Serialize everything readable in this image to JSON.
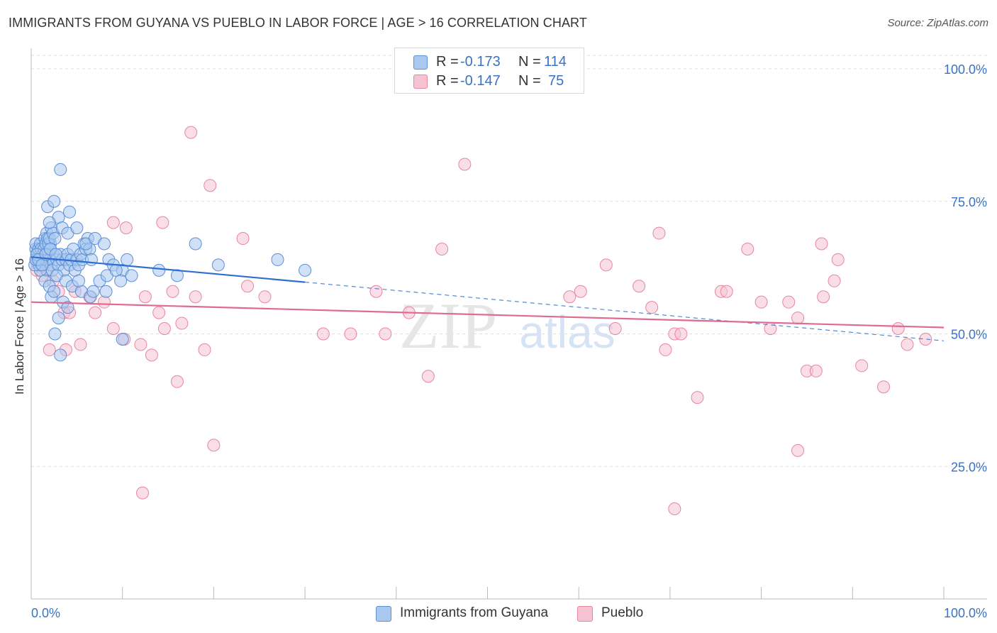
{
  "title": "IMMIGRANTS FROM GUYANA VS PUEBLO IN LABOR FORCE | AGE > 16 CORRELATION CHART",
  "source": "Source: ZipAtlas.com",
  "colors": {
    "blue_fill": "#a9c8f0",
    "blue_stroke": "#5b8fd6",
    "blue_line": "#2f6fd0",
    "pink_fill": "#f6c3d3",
    "pink_stroke": "#e8859f",
    "pink_line": "#e06b92",
    "axis_label": "#3a72c4",
    "grid": "#dddddd"
  },
  "legend_top": {
    "rows": [
      {
        "r_label": "R = ",
        "r_value": "-0.173",
        "n_label": "N = ",
        "n_value": "114"
      },
      {
        "r_label": "R = ",
        "r_value": "-0.147",
        "n_label": "N = ",
        "n_value": "75"
      }
    ]
  },
  "legend_bottom": {
    "items": [
      "Immigrants from Guyana",
      "Pueblo"
    ]
  },
  "watermark": {
    "zip": "ZIP",
    "atlas": "atlas"
  },
  "chart_data": {
    "type": "scatter",
    "title": "IMMIGRANTS FROM GUYANA VS PUEBLO IN LABOR FORCE | AGE > 16 CORRELATION CHART",
    "xlabel": "",
    "ylabel": "In Labor Force | Age > 16",
    "xlim": [
      0,
      100
    ],
    "ylim": [
      0,
      104
    ],
    "x_tick_labels": [
      "0.0%",
      "100.0%"
    ],
    "y_ticks": [
      25,
      50,
      75,
      100
    ],
    "y_tick_labels": [
      "25.0%",
      "50.0%",
      "75.0%",
      "100.0%"
    ],
    "grid": true,
    "series": [
      {
        "name": "Immigrants from Guyana",
        "R": -0.173,
        "N": 114,
        "trend": {
          "x_start": 0,
          "y_start": 64.5,
          "x_solid_end": 30,
          "x_end": 100,
          "y_end": 48.7
        },
        "points": [
          [
            0.5,
            66
          ],
          [
            0.6,
            65
          ],
          [
            0.7,
            64
          ],
          [
            0.8,
            63
          ],
          [
            0.9,
            66
          ],
          [
            1.0,
            65
          ],
          [
            1.1,
            64
          ],
          [
            1.2,
            67
          ],
          [
            1.3,
            66
          ],
          [
            1.4,
            63
          ],
          [
            1.5,
            65
          ],
          [
            1.6,
            64
          ],
          [
            1.7,
            62
          ],
          [
            1.8,
            66
          ],
          [
            1.9,
            65
          ],
          [
            2.0,
            64
          ],
          [
            2.1,
            67
          ],
          [
            2.2,
            63
          ],
          [
            2.3,
            62
          ],
          [
            2.4,
            65
          ],
          [
            0.5,
            67
          ],
          [
            0.6,
            64
          ],
          [
            0.7,
            65
          ],
          [
            0.8,
            66
          ],
          [
            0.9,
            63
          ],
          [
            1.0,
            67
          ],
          [
            1.1,
            66
          ],
          [
            1.2,
            64
          ],
          [
            1.3,
            65
          ],
          [
            1.4,
            66
          ],
          [
            1.5,
            68
          ],
          [
            1.6,
            67
          ],
          [
            1.7,
            69
          ],
          [
            1.8,
            68
          ],
          [
            1.9,
            67
          ],
          [
            2.0,
            68
          ],
          [
            2.1,
            66
          ],
          [
            2.2,
            70
          ],
          [
            2.4,
            69
          ],
          [
            2.6,
            68
          ],
          [
            2.8,
            64
          ],
          [
            3.0,
            63
          ],
          [
            3.2,
            65
          ],
          [
            3.4,
            64
          ],
          [
            3.6,
            62
          ],
          [
            3.8,
            64
          ],
          [
            4.0,
            65
          ],
          [
            4.2,
            63
          ],
          [
            4.4,
            64
          ],
          [
            4.6,
            66
          ],
          [
            4.8,
            62
          ],
          [
            5.0,
            64
          ],
          [
            5.2,
            63
          ],
          [
            5.4,
            65
          ],
          [
            5.6,
            64
          ],
          [
            5.8,
            67
          ],
          [
            6.0,
            66
          ],
          [
            6.2,
            68
          ],
          [
            6.4,
            66
          ],
          [
            6.6,
            64
          ],
          [
            3.0,
            72
          ],
          [
            3.4,
            70
          ],
          [
            4.0,
            69
          ],
          [
            5.0,
            70
          ],
          [
            6.0,
            67
          ],
          [
            7.0,
            68
          ],
          [
            8.0,
            67
          ],
          [
            8.5,
            64
          ],
          [
            9.0,
            63
          ],
          [
            10.0,
            62
          ],
          [
            2.0,
            71
          ],
          [
            1.8,
            74
          ],
          [
            2.5,
            75
          ],
          [
            4.2,
            73
          ],
          [
            3.2,
            81
          ],
          [
            2.8,
            61
          ],
          [
            3.8,
            60
          ],
          [
            4.5,
            59
          ],
          [
            5.5,
            58
          ],
          [
            6.5,
            57
          ],
          [
            7.5,
            60
          ],
          [
            8.3,
            61
          ],
          [
            9.3,
            62
          ],
          [
            10.5,
            64
          ],
          [
            11.0,
            61
          ],
          [
            9.8,
            60
          ],
          [
            2.2,
            57
          ],
          [
            3.5,
            56
          ],
          [
            4.0,
            55
          ],
          [
            5.2,
            60
          ],
          [
            6.8,
            58
          ],
          [
            8.2,
            58
          ],
          [
            3.0,
            53
          ],
          [
            2.6,
            50
          ],
          [
            3.2,
            46
          ],
          [
            10.0,
            49
          ],
          [
            14.0,
            62
          ],
          [
            16.0,
            61
          ],
          [
            18.0,
            67
          ],
          [
            20.5,
            63
          ],
          [
            27.0,
            64
          ],
          [
            30.0,
            62
          ],
          [
            1.0,
            62
          ],
          [
            1.5,
            60
          ],
          [
            2.0,
            59
          ],
          [
            2.5,
            58
          ],
          [
            0.4,
            63
          ],
          [
            0.5,
            64
          ],
          [
            0.6,
            65
          ],
          [
            0.8,
            64
          ],
          [
            1.2,
            63
          ],
          [
            1.6,
            65
          ],
          [
            2.1,
            66
          ],
          [
            2.7,
            65
          ]
        ]
      },
      {
        "name": "Pueblo",
        "R": -0.147,
        "N": 75,
        "trend": {
          "x_start": 0,
          "y_start": 56,
          "x_end": 100,
          "y_end": 51.2
        },
        "points": [
          [
            0.6,
            62
          ],
          [
            1.2,
            61
          ],
          [
            1.8,
            62
          ],
          [
            2.4,
            60
          ],
          [
            3.0,
            58
          ],
          [
            3.6,
            54
          ],
          [
            4.2,
            54
          ],
          [
            4.8,
            58
          ],
          [
            5.4,
            48
          ],
          [
            6.4,
            57
          ],
          [
            7.0,
            54
          ],
          [
            8.0,
            56
          ],
          [
            2.0,
            47
          ],
          [
            3.8,
            47
          ],
          [
            9.0,
            51
          ],
          [
            10.2,
            49
          ],
          [
            12.0,
            48
          ],
          [
            12.5,
            57
          ],
          [
            13.2,
            46
          ],
          [
            14.0,
            54
          ],
          [
            14.6,
            51
          ],
          [
            15.5,
            58
          ],
          [
            16.5,
            52
          ],
          [
            18.0,
            57
          ],
          [
            19.0,
            47
          ],
          [
            16.0,
            41
          ],
          [
            9.0,
            71
          ],
          [
            10.4,
            70
          ],
          [
            14.4,
            71
          ],
          [
            17.5,
            88
          ],
          [
            19.6,
            78
          ],
          [
            23.2,
            68
          ],
          [
            23.7,
            59
          ],
          [
            25.6,
            57
          ],
          [
            12.2,
            20
          ],
          [
            20.0,
            29
          ],
          [
            32.0,
            50
          ],
          [
            35.0,
            50
          ],
          [
            37.8,
            58
          ],
          [
            38.8,
            50
          ],
          [
            41.4,
            54
          ],
          [
            43.5,
            42
          ],
          [
            45.0,
            66
          ],
          [
            47.5,
            82
          ],
          [
            59.0,
            57
          ],
          [
            60.2,
            58
          ],
          [
            63.0,
            63
          ],
          [
            64.0,
            51
          ],
          [
            66.6,
            59
          ],
          [
            68.0,
            55
          ],
          [
            68.8,
            69
          ],
          [
            69.5,
            47
          ],
          [
            70.5,
            50
          ],
          [
            71.2,
            50
          ],
          [
            73.0,
            38
          ],
          [
            75.6,
            58
          ],
          [
            76.2,
            58
          ],
          [
            78.5,
            66
          ],
          [
            80.0,
            56
          ],
          [
            81.0,
            51
          ],
          [
            83.0,
            56
          ],
          [
            84.0,
            53
          ],
          [
            85.0,
            43
          ],
          [
            86.0,
            43
          ],
          [
            86.6,
            67
          ],
          [
            86.8,
            57
          ],
          [
            88.0,
            60
          ],
          [
            88.4,
            64
          ],
          [
            91.0,
            44
          ],
          [
            93.4,
            40
          ],
          [
            95.0,
            51
          ],
          [
            96.0,
            48
          ],
          [
            98.0,
            49
          ],
          [
            84.0,
            28
          ],
          [
            70.5,
            17
          ]
        ]
      }
    ]
  }
}
